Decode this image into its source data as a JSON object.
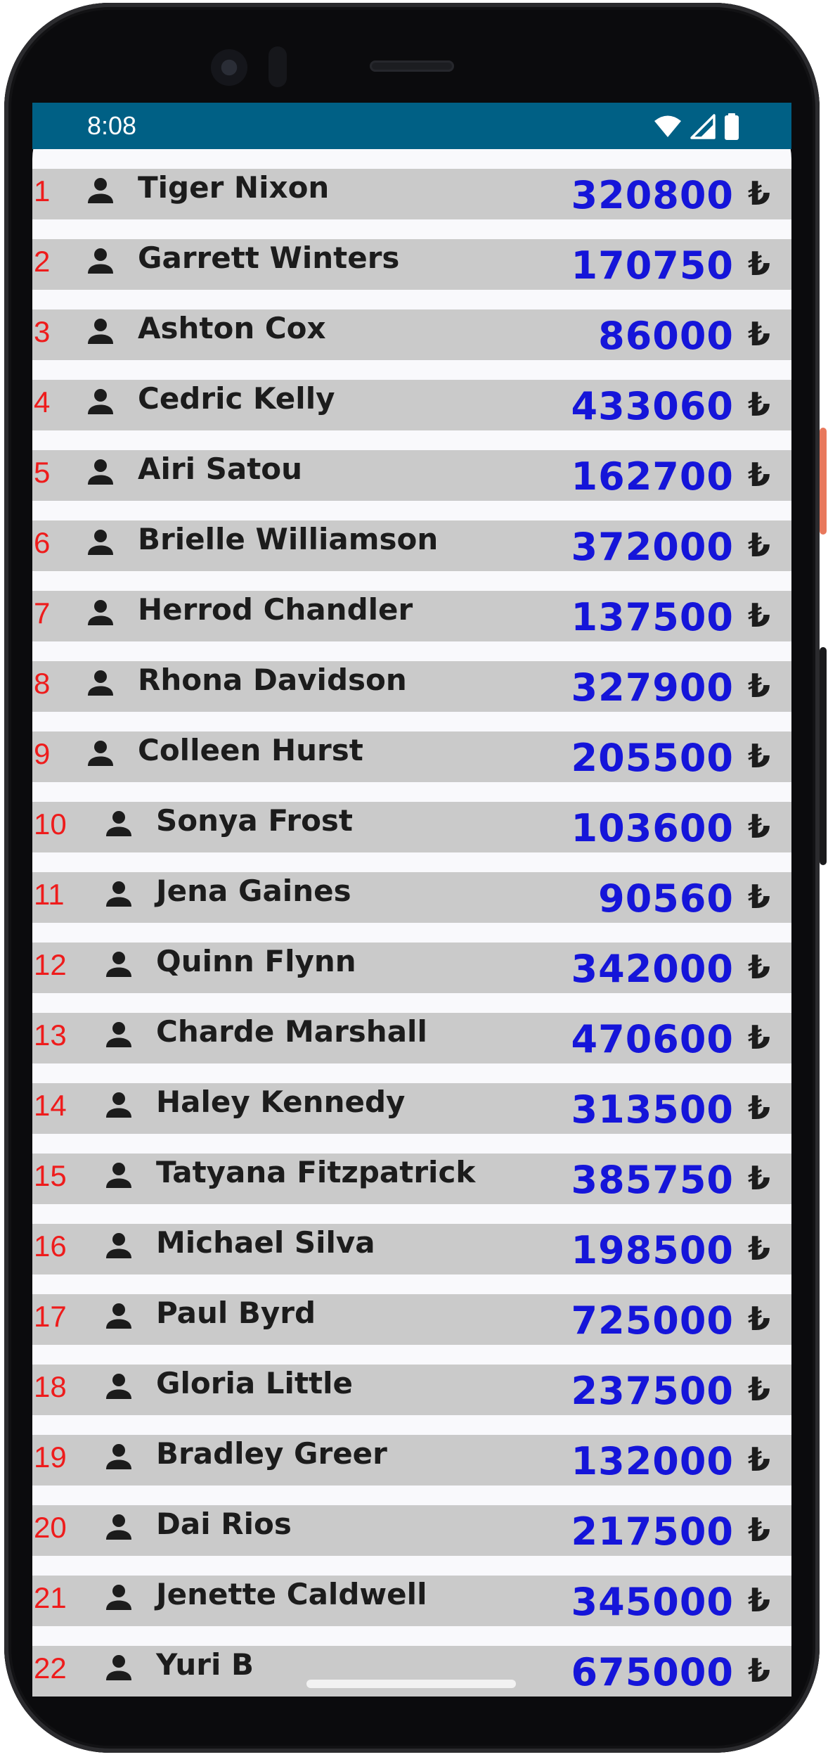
{
  "status_bar": {
    "time": "8:08",
    "icons": [
      "wifi-icon",
      "signal-icon",
      "battery-icon"
    ],
    "background": "#006085"
  },
  "list": {
    "currency_symbol": "₺",
    "colors": {
      "row_background": "#cacaca",
      "index": "#ee1c1c",
      "amount": "#1515d9",
      "name": "#1c1c1c"
    },
    "rows": [
      {
        "index": "1",
        "name": "Tiger Nixon",
        "amount": "320800"
      },
      {
        "index": "2",
        "name": "Garrett Winters",
        "amount": "170750"
      },
      {
        "index": "3",
        "name": "Ashton Cox",
        "amount": "86000"
      },
      {
        "index": "4",
        "name": "Cedric Kelly",
        "amount": "433060"
      },
      {
        "index": "5",
        "name": "Airi Satou",
        "amount": "162700"
      },
      {
        "index": "6",
        "name": "Brielle Williamson",
        "amount": "372000"
      },
      {
        "index": "7",
        "name": "Herrod Chandler",
        "amount": "137500"
      },
      {
        "index": "8",
        "name": "Rhona Davidson",
        "amount": "327900"
      },
      {
        "index": "9",
        "name": "Colleen Hurst",
        "amount": "205500"
      },
      {
        "index": "10",
        "name": "Sonya Frost",
        "amount": "103600"
      },
      {
        "index": "11",
        "name": "Jena Gaines",
        "amount": "90560"
      },
      {
        "index": "12",
        "name": "Quinn Flynn",
        "amount": "342000"
      },
      {
        "index": "13",
        "name": "Charde Marshall",
        "amount": "470600"
      },
      {
        "index": "14",
        "name": "Haley Kennedy",
        "amount": "313500"
      },
      {
        "index": "15",
        "name": "Tatyana Fitzpatrick",
        "amount": "385750"
      },
      {
        "index": "16",
        "name": "Michael Silva",
        "amount": "198500"
      },
      {
        "index": "17",
        "name": "Paul Byrd",
        "amount": "725000"
      },
      {
        "index": "18",
        "name": "Gloria Little",
        "amount": "237500"
      },
      {
        "index": "19",
        "name": "Bradley Greer",
        "amount": "132000"
      },
      {
        "index": "20",
        "name": "Dai Rios",
        "amount": "217500"
      },
      {
        "index": "21",
        "name": "Jenette Caldwell",
        "amount": "345000"
      },
      {
        "index": "22",
        "name": "Yuri B",
        "amount": "675000"
      }
    ]
  }
}
